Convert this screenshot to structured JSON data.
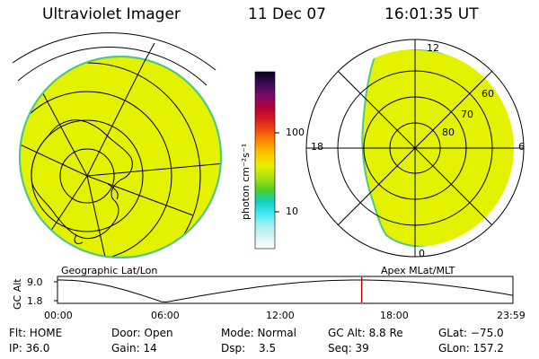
{
  "header": {
    "instrument": "Ultraviolet Imager",
    "date": "11 Dec 07",
    "time": "16:01:35 UT"
  },
  "colors": {
    "image_fill": "#e4f200",
    "image_edge": "#4dc88a"
  },
  "colorbar": {
    "unit_label": "photon cm⁻²s⁻¹",
    "tick_labels": [
      "100",
      "10"
    ],
    "color_stops": [
      "#0a0020",
      "#3a0a55",
      "#7a0a6a",
      "#b0003a",
      "#d81820",
      "#f05010",
      "#ff9000",
      "#ffc800",
      "#e8f000",
      "#a8e010",
      "#50d020",
      "#10d0c0",
      "#40e8f0",
      "#a0f0f0",
      "#d8f4f4",
      "#ffffff"
    ]
  },
  "geo_panel": {
    "label": "Geographic Lat/Lon"
  },
  "mag_panel": {
    "label": "Apex MLat/MLT",
    "mlt_labels": {
      "top": "12",
      "left": "18",
      "right": "6",
      "bottom": "0"
    },
    "mlat_labels": [
      "60",
      "70",
      "80"
    ]
  },
  "timeline": {
    "ylabel": "GC Alt",
    "y_ticks": [
      "9.0",
      "1.8"
    ],
    "x_ticks": [
      "00:00",
      "06:00",
      "12:00",
      "18:00",
      "23:59"
    ],
    "current_time_hours": 16.03
  },
  "info": {
    "row1": [
      "Flt: HOME",
      "Door: Open",
      "Mode: Normal",
      "GC Alt: 8.8 Re",
      "GLat: −75.0"
    ],
    "row2": [
      "IP: 36.0",
      "Gain: 14",
      "Dsp:",
      "3.5",
      "Seq: 39",
      "GLon: 157.2"
    ]
  }
}
